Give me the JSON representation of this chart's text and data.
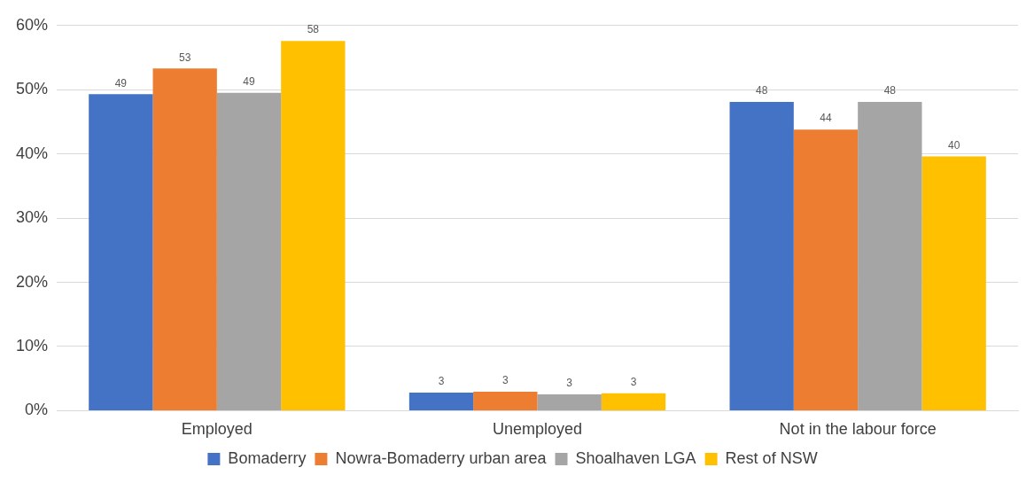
{
  "chart_data": {
    "type": "bar",
    "categories": [
      "Employed",
      "Unemployed",
      "Not in the labour force"
    ],
    "series": [
      {
        "name": "Bomaderry",
        "color": "#4472c4",
        "values": [
          49.3,
          2.8,
          48.1
        ],
        "value_labels": [
          "49",
          "3",
          "48"
        ]
      },
      {
        "name": "Nowra-Bomaderry urban area",
        "color": "#ed7d31",
        "values": [
          53.3,
          2.95,
          43.8
        ],
        "value_labels": [
          "53",
          "3",
          "44"
        ]
      },
      {
        "name": "Shoalhaven LGA",
        "color": "#a5a5a5",
        "values": [
          49.5,
          2.55,
          48.1
        ],
        "value_labels": [
          "49",
          "3",
          "48"
        ]
      },
      {
        "name": "Rest of NSW",
        "color": "#ffc000",
        "values": [
          57.6,
          2.7,
          39.6
        ],
        "value_labels": [
          "58",
          "3",
          "40"
        ]
      }
    ],
    "ylim": [
      0,
      60
    ],
    "yticks": [
      {
        "value": 0,
        "label": "0%"
      },
      {
        "value": 10,
        "label": "10%"
      },
      {
        "value": 20,
        "label": "20%"
      },
      {
        "value": 30,
        "label": "30%"
      },
      {
        "value": 40,
        "label": "40%"
      },
      {
        "value": 50,
        "label": "50%"
      },
      {
        "value": 60,
        "label": "60%"
      }
    ],
    "grid": "y",
    "legend": "bottom"
  }
}
